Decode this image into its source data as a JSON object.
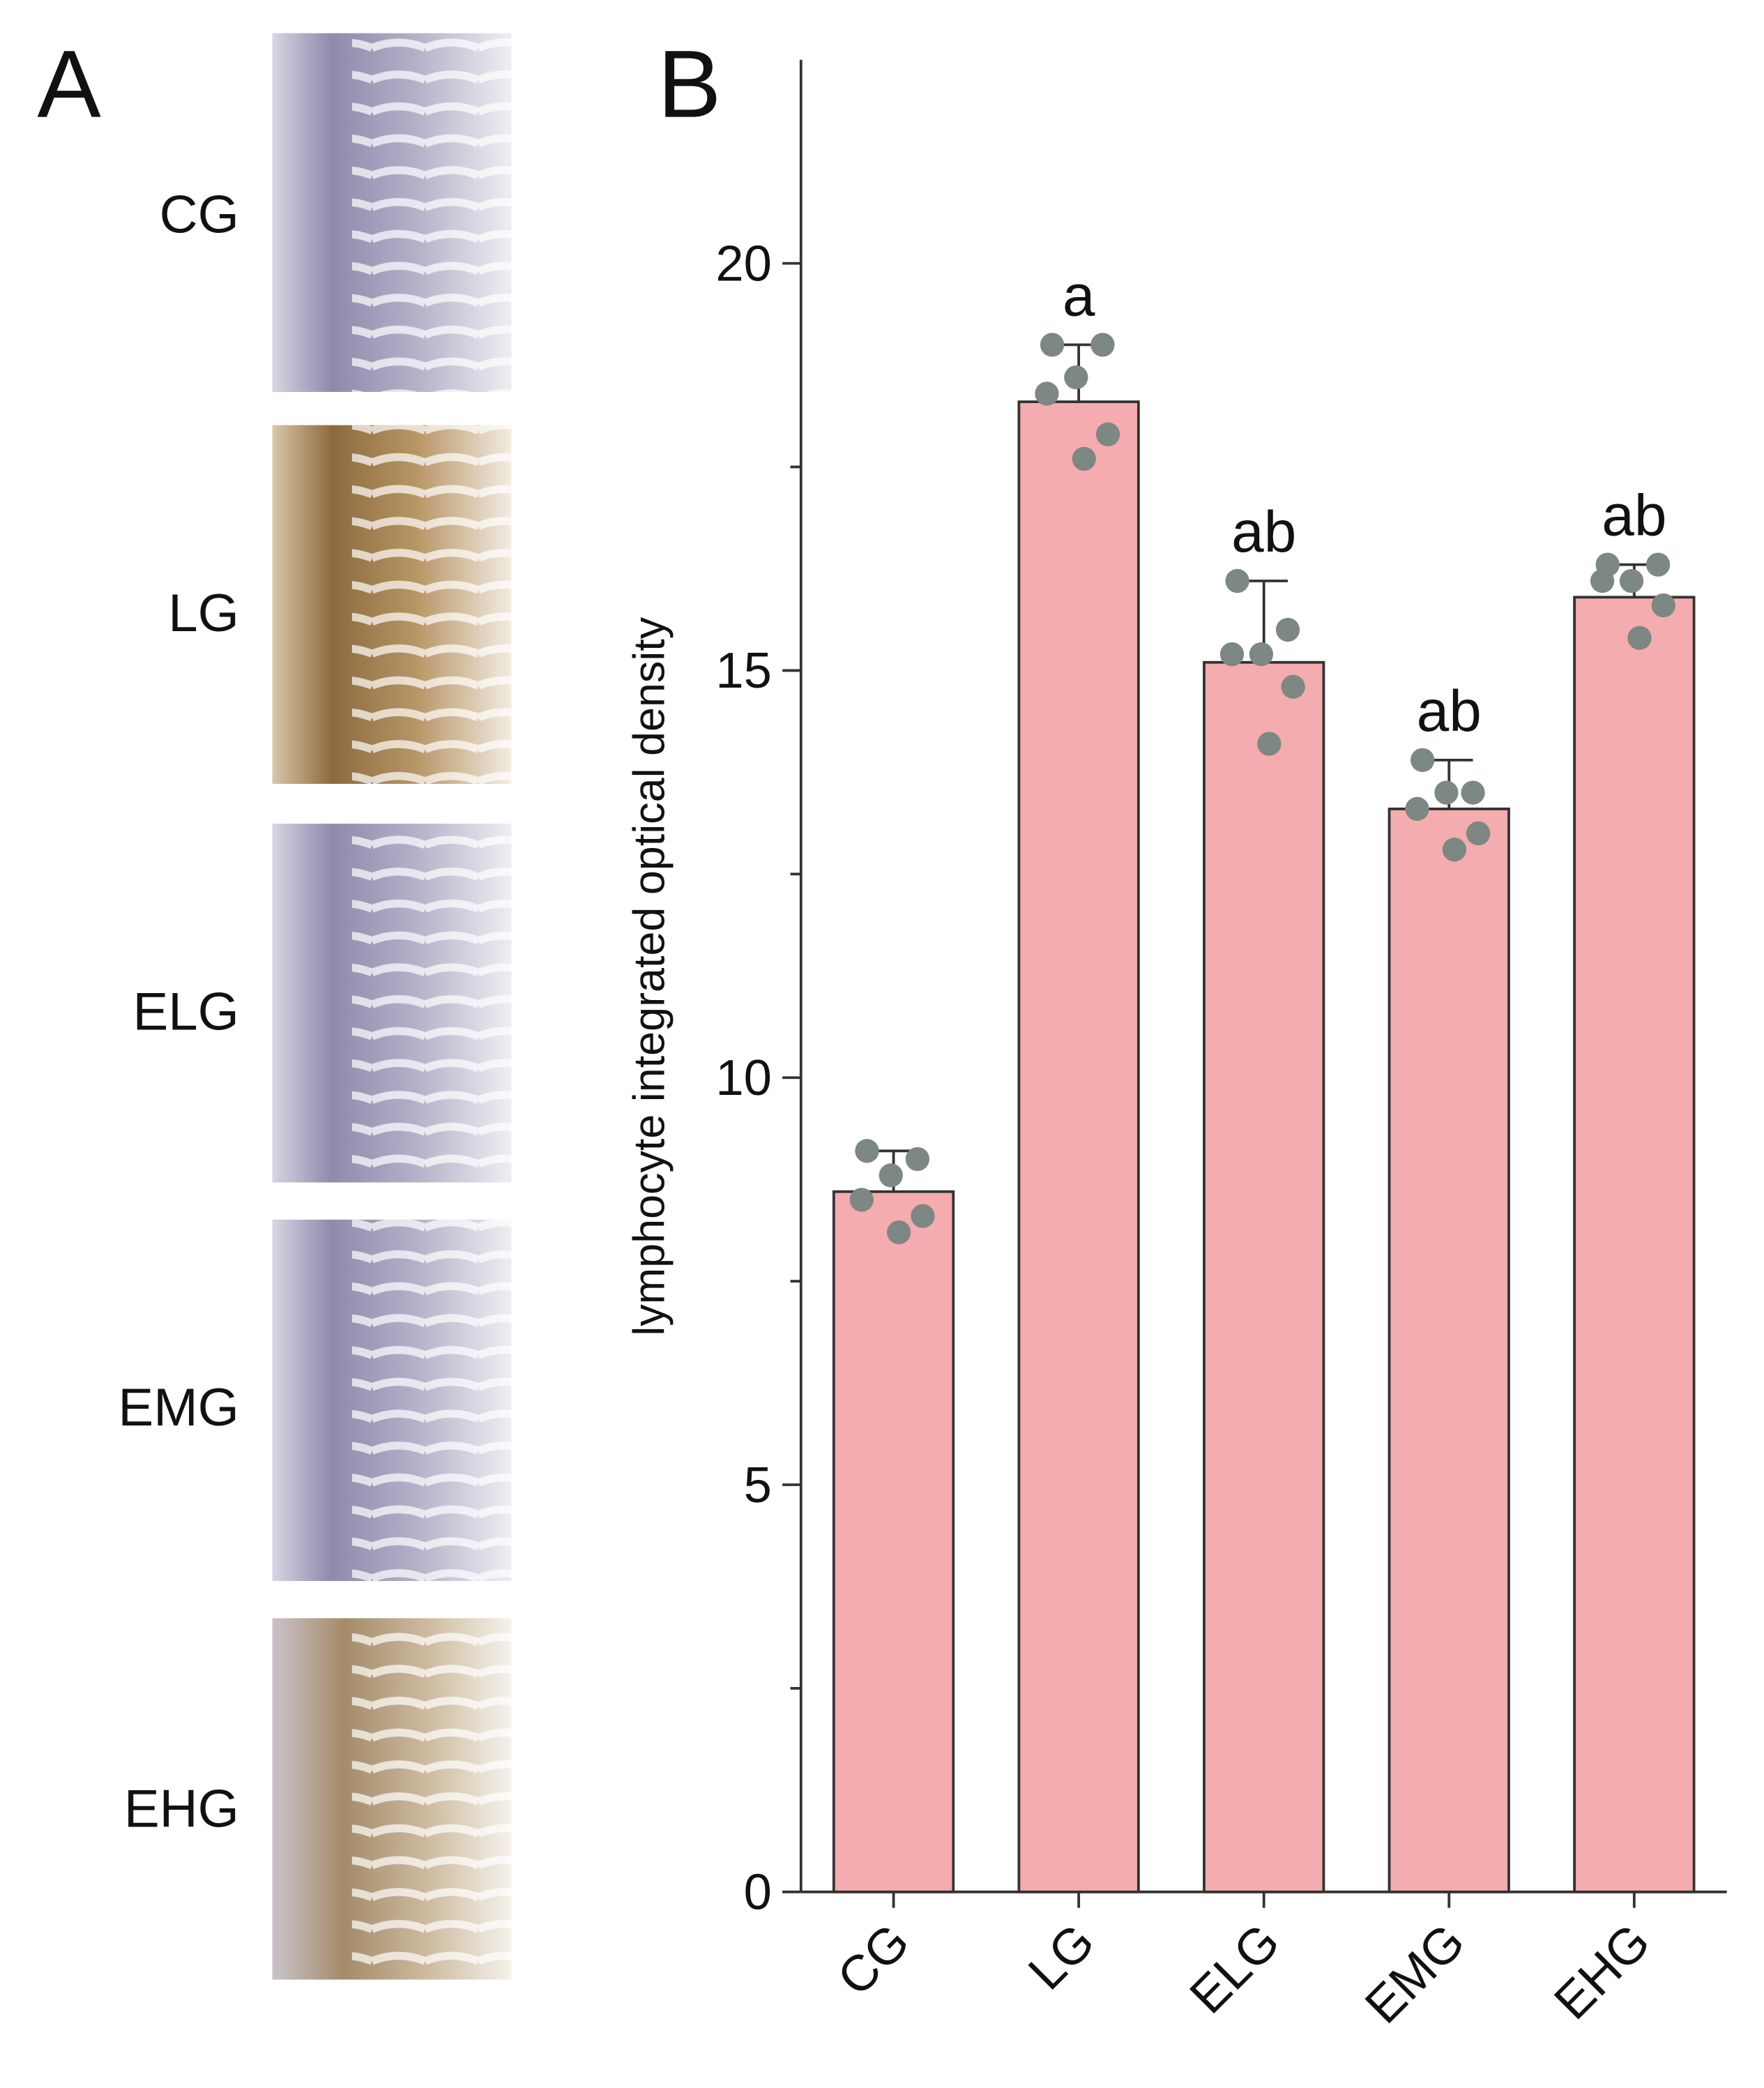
{
  "panel_a": {
    "label": "A",
    "sample_labels": [
      "CG",
      "LG",
      "ELG",
      "EMG",
      "EHG"
    ]
  },
  "chart_data": {
    "type": "bar",
    "panel_label": "B",
    "y_label": "lymphocyte integrated optical density",
    "categories": [
      "CG",
      "LG",
      "ELG",
      "EMG",
      "EHG"
    ],
    "values": [
      8.6,
      18.3,
      15.1,
      13.3,
      15.9
    ],
    "errors": [
      0.5,
      0.7,
      1.0,
      0.6,
      0.4
    ],
    "points": [
      [
        9.1,
        9.0,
        8.8,
        8.5,
        8.3,
        8.1
      ],
      [
        19.0,
        19.0,
        18.6,
        18.4,
        17.9,
        17.6
      ],
      [
        16.1,
        15.5,
        15.2,
        15.2,
        14.8,
        14.1
      ],
      [
        13.9,
        13.5,
        13.5,
        13.3,
        13.0,
        12.8
      ],
      [
        16.3,
        16.3,
        16.1,
        16.1,
        15.8,
        15.4
      ]
    ],
    "significance": [
      null,
      "a",
      "ab",
      "ab",
      "ab"
    ],
    "color": "#f4acae",
    "point_color": "#7d8783",
    "ylim": [
      0,
      22.5
    ],
    "yticks": [
      0,
      5,
      10,
      15,
      20
    ],
    "yticks_minor": [
      2.5,
      7.5,
      12.5,
      17.5
    ]
  }
}
